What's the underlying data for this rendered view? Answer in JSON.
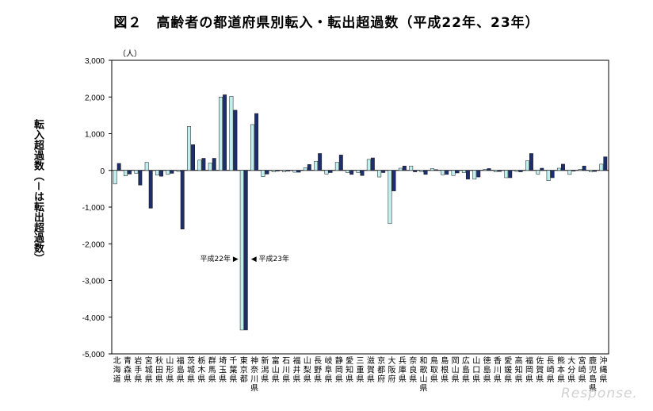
{
  "chart_data": {
    "type": "bar",
    "title": "図２　高齢者の都道府県別転入・転出超過数（平成22年、23年）",
    "ylabel": "転入超過数（－は転出超過数）",
    "unit": "（人）",
    "ylim": [
      -5000,
      3000
    ],
    "yticks": [
      "3,000",
      "2,000",
      "1,000",
      "0",
      "-1,000",
      "-2,000",
      "-3,000",
      "-4,000",
      "-5,000"
    ],
    "categories": [
      "北海道",
      "青森県",
      "岩手県",
      "宮城県",
      "秋田県",
      "山形県",
      "福島県",
      "茨城県",
      "栃木県",
      "群馬県",
      "埼玉県",
      "千葉県",
      "東京都",
      "神奈川県",
      "新潟県",
      "富山県",
      "石川県",
      "福井県",
      "山梨県",
      "長野県",
      "岐阜県",
      "静岡県",
      "愛知県",
      "三重県",
      "滋賀県",
      "京都府",
      "大阪府",
      "兵庫県",
      "奈良県",
      "和歌山県",
      "鳥取県",
      "島根県",
      "岡山県",
      "広島県",
      "山口県",
      "徳島県",
      "香川県",
      "愛媛県",
      "高知県",
      "福岡県",
      "佐賀県",
      "長崎県",
      "熊本県",
      "大分県",
      "宮崎県",
      "鹿児島県",
      "沖縄県"
    ],
    "series": [
      {
        "name": "平成22年",
        "color": "#bfefef",
        "values": [
          -370,
          -150,
          -80,
          220,
          -130,
          -110,
          -30,
          1200,
          280,
          200,
          2000,
          2020,
          -4350,
          1250,
          -170,
          -40,
          -40,
          -50,
          70,
          250,
          -100,
          220,
          -60,
          -60,
          300,
          -180,
          -1450,
          60,
          120,
          -40,
          50,
          -120,
          -140,
          -60,
          -240,
          30,
          -40,
          -200,
          -30,
          260,
          -100,
          -280,
          60,
          -110,
          30,
          -40,
          170
        ]
      },
      {
        "name": "平成23年",
        "color": "#1c2e70",
        "values": [
          190,
          -100,
          -400,
          -1030,
          -160,
          -80,
          -1600,
          700,
          330,
          330,
          2060,
          1640,
          -4350,
          1550,
          -100,
          -20,
          -20,
          -50,
          160,
          460,
          -60,
          420,
          -110,
          -140,
          340,
          -60,
          -560,
          120,
          -40,
          -110,
          20,
          -110,
          -70,
          -240,
          -180,
          50,
          -30,
          -200,
          -40,
          460,
          60,
          -200,
          170,
          -20,
          120,
          -30,
          370
        ]
      }
    ],
    "annotations": [
      "平成22年 ▶",
      "◀ 平成23年"
    ]
  },
  "watermark": "Response."
}
